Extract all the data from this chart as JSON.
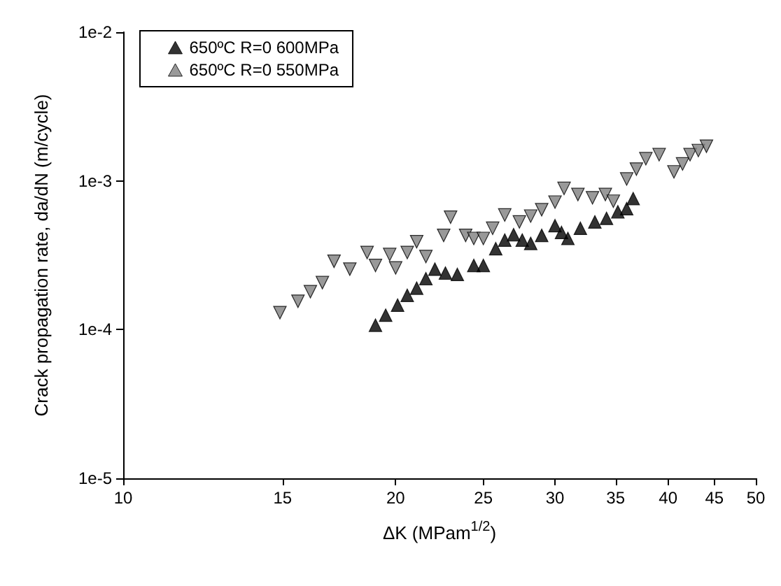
{
  "chart_data": {
    "type": "scatter",
    "xlabel": "ΔK (MPam$^{1/2}$)",
    "ylabel": "Crack propagation rate, da/dN (m/cycle)",
    "log": "xy",
    "xlim": [
      10,
      50
    ],
    "xticks": [
      10,
      15,
      20,
      25,
      30,
      35,
      40,
      45,
      50
    ],
    "ylim": [
      1e-05,
      0.01
    ],
    "yticks": [
      {
        "value": 1e-05,
        "label": "1e-5"
      },
      {
        "value": 0.0001,
        "label": "1e-4"
      },
      {
        "value": 0.001,
        "label": "1e-3"
      },
      {
        "value": 0.01,
        "label": "1e-2"
      }
    ],
    "grid": false,
    "legend": "top left",
    "marker": "triangle",
    "series": [
      {
        "name": "650ºC R=0 600MPa",
        "color": "#000000",
        "x": [
          19.0,
          19.5,
          20.1,
          20.6,
          21.1,
          21.6,
          22.1,
          22.7,
          23.4,
          24.4,
          25.0,
          25.8,
          26.4,
          27.0,
          27.6,
          28.2,
          29.0,
          30.0,
          30.5,
          31.0,
          32.0,
          33.2,
          34.2,
          35.2,
          36.0,
          36.6
        ],
        "values": [
          0.000107,
          0.000125,
          0.000146,
          0.00017,
          0.00019,
          0.00022,
          0.000255,
          0.00024,
          0.000235,
          0.00027,
          0.00027,
          0.00035,
          0.0004,
          0.000435,
          0.0004,
          0.00038,
          0.00043,
          0.0005,
          0.00045,
          0.00041,
          0.00048,
          0.00053,
          0.00056,
          0.00062,
          0.00065,
          0.00076
        ]
      },
      {
        "name": "650ºC R=0 550MPa",
        "color": "#808080",
        "x": [
          14.9,
          15.6,
          16.1,
          16.6,
          17.1,
          17.8,
          18.6,
          19.0,
          19.7,
          20.0,
          20.6,
          21.1,
          21.6,
          22.6,
          23.0,
          23.9,
          24.4,
          25.0,
          25.6,
          26.4,
          27.4,
          28.2,
          29.0,
          30.0,
          30.7,
          31.8,
          33.0,
          34.1,
          34.8,
          36.0,
          36.9,
          37.8,
          39.1,
          40.6,
          41.5,
          42.3,
          43.2,
          44.1
        ],
        "values": [
          0.00013,
          0.000155,
          0.00018,
          0.000207,
          0.000288,
          0.000255,
          0.00033,
          0.00027,
          0.00032,
          0.00026,
          0.00033,
          0.00039,
          0.00031,
          0.00043,
          0.00057,
          0.00043,
          0.00041,
          0.00041,
          0.00048,
          0.00059,
          0.00053,
          0.00058,
          0.00064,
          0.00072,
          0.00089,
          0.00081,
          0.00077,
          0.00081,
          0.00073,
          0.00103,
          0.0012,
          0.00141,
          0.0015,
          0.00115,
          0.0013,
          0.0015,
          0.0016,
          0.00171
        ]
      }
    ]
  }
}
